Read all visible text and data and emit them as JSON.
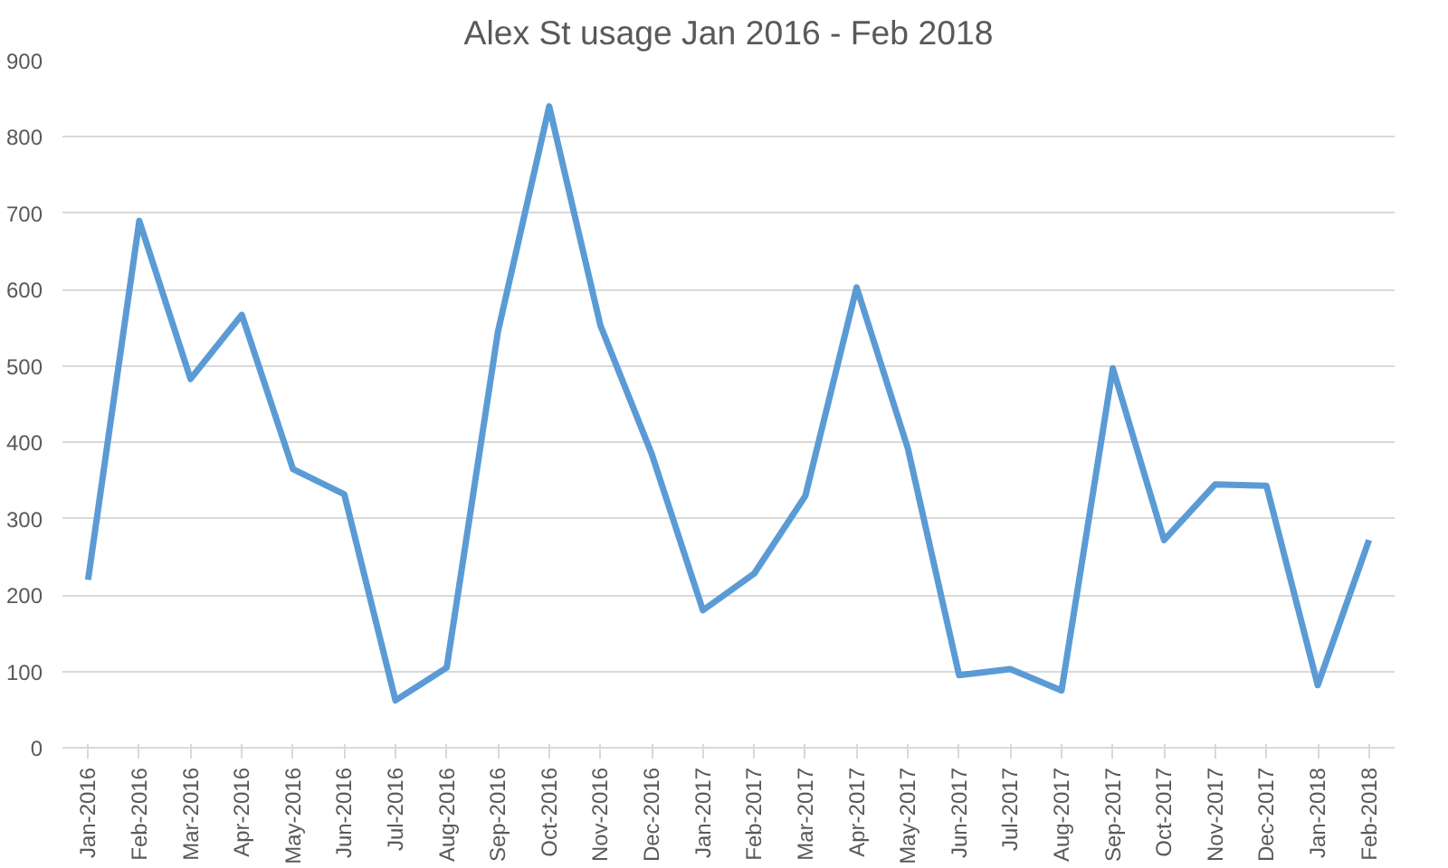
{
  "chart_data": {
    "type": "line",
    "title": "Alex St usage Jan 2016 - Feb 2018",
    "categories": [
      "Jan-2016",
      "Feb-2016",
      "Mar-2016",
      "Apr-2016",
      "May-2016",
      "Jun-2016",
      "Jul-2016",
      "Aug-2016",
      "Sep-2016",
      "Oct-2016",
      "Nov-2016",
      "Dec-2016",
      "Jan-2017",
      "Feb-2017",
      "Mar-2017",
      "Apr-2017",
      "May-2017",
      "Jun-2017",
      "Jul-2017",
      "Aug-2017",
      "Sep-2017",
      "Oct-2017",
      "Nov-2017",
      "Dec-2017",
      "Jan-2018",
      "Feb-2018"
    ],
    "series": [
      {
        "color": "#5b9bd5",
        "values": [
          220,
          690,
          483,
          567,
          365,
          332,
          62,
          105,
          545,
          840,
          553,
          385,
          180,
          228,
          330,
          603,
          392,
          95,
          103,
          75,
          497,
          272,
          345,
          343,
          82,
          272
        ]
      }
    ],
    "ylim": [
      0,
      900
    ],
    "yticks": [
      0,
      100,
      200,
      300,
      400,
      500,
      600,
      700,
      800,
      900
    ],
    "grid": "y",
    "marker": "none",
    "line_style": "solid"
  }
}
